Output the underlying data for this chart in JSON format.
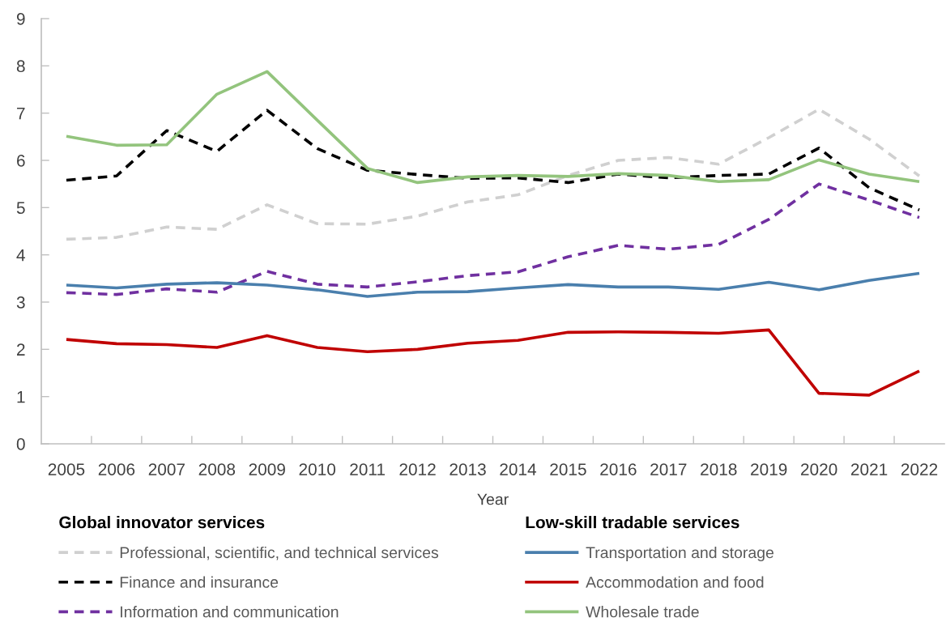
{
  "chart_data": {
    "type": "line",
    "xlabel": "Year",
    "legend_title": [
      "Global innovator services",
      "Low-skill tradable services"
    ],
    "legend": "bottom",
    "categories": [
      "2005",
      "2006",
      "2007",
      "2008",
      "2009",
      "2010",
      "2011",
      "2012",
      "2013",
      "2014",
      "2015",
      "2016",
      "2017",
      "2018",
      "2019",
      "2020",
      "2021",
      "2022"
    ],
    "ylim": [
      0,
      9
    ],
    "yticks": [
      0,
      1,
      2,
      3,
      4,
      5,
      6,
      7,
      8,
      9
    ],
    "series": [
      {
        "name": "Professional, scientific, and technical services",
        "color": "#d0d0d0",
        "line_style": "dashed",
        "values": [
          4.33,
          4.37,
          4.59,
          4.54,
          5.06,
          4.66,
          4.65,
          4.82,
          5.12,
          5.27,
          5.68,
          6.0,
          6.06,
          5.92,
          6.48,
          7.08,
          6.45,
          5.67
        ]
      },
      {
        "name": "Finance and insurance",
        "color": "#000000",
        "line_style": "dashed",
        "values": [
          5.58,
          5.67,
          6.63,
          6.19,
          7.06,
          6.25,
          5.79,
          5.7,
          5.62,
          5.63,
          5.53,
          5.71,
          5.63,
          5.68,
          5.71,
          6.26,
          5.42,
          4.95
        ]
      },
      {
        "name": "Information and communication",
        "color": "#7030a0",
        "line_style": "dashed",
        "values": [
          3.2,
          3.16,
          3.28,
          3.21,
          3.65,
          3.38,
          3.32,
          3.43,
          3.56,
          3.64,
          3.96,
          4.2,
          4.12,
          4.22,
          4.75,
          5.5,
          5.16,
          4.79
        ]
      },
      {
        "name": "Transportation and storage",
        "color": "#4a7fad",
        "line_style": "solid",
        "values": [
          3.36,
          3.3,
          3.38,
          3.41,
          3.36,
          3.26,
          3.12,
          3.21,
          3.22,
          3.3,
          3.37,
          3.32,
          3.32,
          3.27,
          3.42,
          3.26,
          3.46,
          3.61
        ]
      },
      {
        "name": "Accommodation and food",
        "color": "#c00000",
        "line_style": "solid",
        "values": [
          2.21,
          2.12,
          2.1,
          2.04,
          2.29,
          2.04,
          1.95,
          2.0,
          2.13,
          2.19,
          2.36,
          2.37,
          2.36,
          2.34,
          2.41,
          1.07,
          1.03,
          1.54
        ]
      },
      {
        "name": "Wholesale trade",
        "color": "#93c47d",
        "line_style": "solid",
        "values": [
          6.51,
          6.32,
          6.33,
          7.4,
          7.88,
          6.85,
          5.83,
          5.53,
          5.65,
          5.68,
          5.66,
          5.72,
          5.68,
          5.55,
          5.59,
          6.01,
          5.71,
          5.55
        ]
      }
    ]
  }
}
